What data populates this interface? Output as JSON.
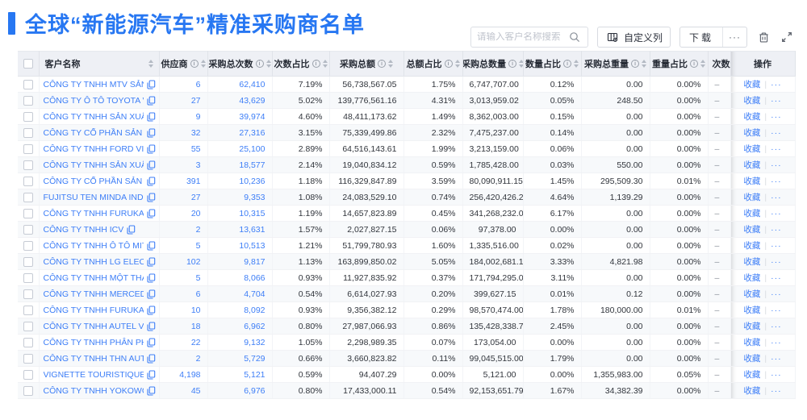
{
  "page": {
    "title": "全球“新能源汽车”精准采购商名单"
  },
  "toolbar": {
    "search_placeholder": "请输入客户名称搜索",
    "customize_columns_label": "自定义列",
    "download_label": "下载",
    "download_more_label": "···"
  },
  "colors": {
    "accent": "#2777f2",
    "link": "#3d7ef7",
    "header_bg": "#eef0f5"
  },
  "table": {
    "headers": {
      "name": "客户名称",
      "supplier": "供应商",
      "total_count": "采购总次数",
      "count_pct": "次数占比",
      "total_amount": "采购总额",
      "amount_pct": "总额占比",
      "total_qty": "采购总数量",
      "qty_pct": "数量占比",
      "total_weight": "采购总重量",
      "weight_pct": "重量占比",
      "trend": "次数趋势",
      "action": "操作"
    },
    "action_labels": {
      "favorite": "收藏",
      "more": "···"
    },
    "trend_placeholder": "–",
    "rows": [
      {
        "name": "CÔNG TY TNHH MTV SẢN XUẤ...",
        "supplier": "6",
        "total_count": "62,410",
        "count_pct": "7.19%",
        "total_amount": "56,738,567.05",
        "amount_pct": "1.75%",
        "total_qty": "6,747,707.00",
        "qty_pct": "0.12%",
        "total_weight": "0.00",
        "weight_pct": "0.00%",
        "trend": "–"
      },
      {
        "name": "CÔNG TY Ô TÔ TOYOTA VIỆT ...",
        "supplier": "27",
        "total_count": "43,629",
        "count_pct": "5.02%",
        "total_amount": "139,776,561.16",
        "amount_pct": "4.31%",
        "total_qty": "3,013,959.02",
        "qty_pct": "0.05%",
        "total_weight": "248.50",
        "weight_pct": "0.00%",
        "trend": "–"
      },
      {
        "name": "CÔNG TY TNHH SẢN XUẤT VÀ ...",
        "supplier": "9",
        "total_count": "39,974",
        "count_pct": "4.60%",
        "total_amount": "48,411,173.62",
        "amount_pct": "1.49%",
        "total_qty": "8,362,003.00",
        "qty_pct": "0.15%",
        "total_weight": "0.00",
        "weight_pct": "0.00%",
        "trend": "–"
      },
      {
        "name": "CÔNG TY CỔ PHẦN SẢN XUẤT...",
        "supplier": "32",
        "total_count": "27,316",
        "count_pct": "3.15%",
        "total_amount": "75,339,499.86",
        "amount_pct": "2.32%",
        "total_qty": "7,475,237.00",
        "qty_pct": "0.14%",
        "total_weight": "0.00",
        "weight_pct": "0.00%",
        "trend": "–"
      },
      {
        "name": "CÔNG TY TNHH FORD VIỆT NAM",
        "supplier": "55",
        "total_count": "25,100",
        "count_pct": "2.89%",
        "total_amount": "64,516,143.61",
        "amount_pct": "1.99%",
        "total_qty": "3,213,159.00",
        "qty_pct": "0.06%",
        "total_weight": "0.00",
        "weight_pct": "0.00%",
        "trend": "–"
      },
      {
        "name": "CÔNG TY TNHH SẢN XUẤT VÀ ...",
        "supplier": "3",
        "total_count": "18,577",
        "count_pct": "2.14%",
        "total_amount": "19,040,834.12",
        "amount_pct": "0.59%",
        "total_qty": "1,785,428.00",
        "qty_pct": "0.03%",
        "total_weight": "550.00",
        "weight_pct": "0.00%",
        "trend": "–"
      },
      {
        "name": "CÔNG TY CỔ PHẦN SẢN XUẤT...",
        "supplier": "391",
        "total_count": "10,236",
        "count_pct": "1.18%",
        "total_amount": "116,329,847.89",
        "amount_pct": "3.59%",
        "total_qty": "80,090,911.15",
        "qty_pct": "1.45%",
        "total_weight": "295,509.30",
        "weight_pct": "0.01%",
        "trend": "–"
      },
      {
        "name": "FUJITSU TEN MINDA INDIA PVT...",
        "supplier": "27",
        "total_count": "9,353",
        "count_pct": "1.08%",
        "total_amount": "24,083,529.10",
        "amount_pct": "0.74%",
        "total_qty": "256,420,426.29",
        "qty_pct": "4.64%",
        "total_weight": "1,139.29",
        "weight_pct": "0.00%",
        "trend": "–"
      },
      {
        "name": "CÔNG TY TNHH FURUKAWA A...",
        "supplier": "20",
        "total_count": "10,315",
        "count_pct": "1.19%",
        "total_amount": "14,657,823.89",
        "amount_pct": "0.45%",
        "total_qty": "341,268,232.00",
        "qty_pct": "6.17%",
        "total_weight": "0.00",
        "weight_pct": "0.00%",
        "trend": "–"
      },
      {
        "name": "CÔNG TY TNHH ICV",
        "supplier": "2",
        "total_count": "13,631",
        "count_pct": "1.57%",
        "total_amount": "2,027,827.15",
        "amount_pct": "0.06%",
        "total_qty": "97,378.00",
        "qty_pct": "0.00%",
        "total_weight": "0.00",
        "weight_pct": "0.00%",
        "trend": "–"
      },
      {
        "name": "CÔNG TY TNHH Ô TÔ MITSUBI...",
        "supplier": "5",
        "total_count": "10,513",
        "count_pct": "1.21%",
        "total_amount": "51,799,780.93",
        "amount_pct": "1.60%",
        "total_qty": "1,335,516.00",
        "qty_pct": "0.02%",
        "total_weight": "0.00",
        "weight_pct": "0.00%",
        "trend": "–"
      },
      {
        "name": "CÔNG TY TNHH LG ELECTRON...",
        "supplier": "102",
        "total_count": "9,817",
        "count_pct": "1.13%",
        "total_amount": "163,899,850.02",
        "amount_pct": "5.05%",
        "total_qty": "184,002,681.15",
        "qty_pct": "3.33%",
        "total_weight": "4,821.98",
        "weight_pct": "0.00%",
        "trend": "–"
      },
      {
        "name": "CÔNG TY TNHH MỘT THÀNH V...",
        "supplier": "5",
        "total_count": "8,066",
        "count_pct": "0.93%",
        "total_amount": "11,927,835.92",
        "amount_pct": "0.37%",
        "total_qty": "171,794,295.00",
        "qty_pct": "3.11%",
        "total_weight": "0.00",
        "weight_pct": "0.00%",
        "trend": "–"
      },
      {
        "name": "CÔNG TY TNHH MERCEDES–B...",
        "supplier": "6",
        "total_count": "4,704",
        "count_pct": "0.54%",
        "total_amount": "6,614,027.93",
        "amount_pct": "0.20%",
        "total_qty": "399,627.15",
        "qty_pct": "0.01%",
        "total_weight": "0.12",
        "weight_pct": "0.00%",
        "trend": "–"
      },
      {
        "name": "CÔNG TY TNHH FURUKAWA A...",
        "supplier": "10",
        "total_count": "8,092",
        "count_pct": "0.93%",
        "total_amount": "9,356,382.12",
        "amount_pct": "0.29%",
        "total_qty": "98,570,474.00",
        "qty_pct": "1.78%",
        "total_weight": "180,000.00",
        "weight_pct": "0.01%",
        "trend": "–"
      },
      {
        "name": "CÔNG TY TNHH AUTEL VIỆT N...",
        "supplier": "18",
        "total_count": "6,962",
        "count_pct": "0.80%",
        "total_amount": "27,987,066.93",
        "amount_pct": "0.86%",
        "total_qty": "135,428,338.71",
        "qty_pct": "2.45%",
        "total_weight": "0.00",
        "weight_pct": "0.00%",
        "trend": "–"
      },
      {
        "name": "CÔNG TY TNHH PHÂN PHỐI T...",
        "supplier": "22",
        "total_count": "9,132",
        "count_pct": "1.05%",
        "total_amount": "2,298,989.35",
        "amount_pct": "0.07%",
        "total_qty": "173,054.00",
        "qty_pct": "0.00%",
        "total_weight": "0.00",
        "weight_pct": "0.00%",
        "trend": "–"
      },
      {
        "name": "CÔNG TY TNHH THN AUTOPAR...",
        "supplier": "2",
        "total_count": "5,729",
        "count_pct": "0.66%",
        "total_amount": "3,660,823.82",
        "amount_pct": "0.11%",
        "total_qty": "99,045,515.00",
        "qty_pct": "1.79%",
        "total_weight": "0.00",
        "weight_pct": "0.00%",
        "trend": "–"
      },
      {
        "name": "VIGNETTE TOURISTIQUE G UNI...",
        "supplier": "4,198",
        "total_count": "5,121",
        "count_pct": "0.59%",
        "total_amount": "94,407.29",
        "amount_pct": "0.00%",
        "total_qty": "5,121.00",
        "qty_pct": "0.00%",
        "total_weight": "1,355,983.00",
        "weight_pct": "0.05%",
        "trend": "–"
      },
      {
        "name": "CÔNG TY TNHH YOKOWO VIỆT...",
        "supplier": "45",
        "total_count": "6,976",
        "count_pct": "0.80%",
        "total_amount": "17,433,000.11",
        "amount_pct": "0.54%",
        "total_qty": "92,153,651.79",
        "qty_pct": "1.67%",
        "total_weight": "34,382.39",
        "weight_pct": "0.00%",
        "trend": "–"
      }
    ]
  }
}
